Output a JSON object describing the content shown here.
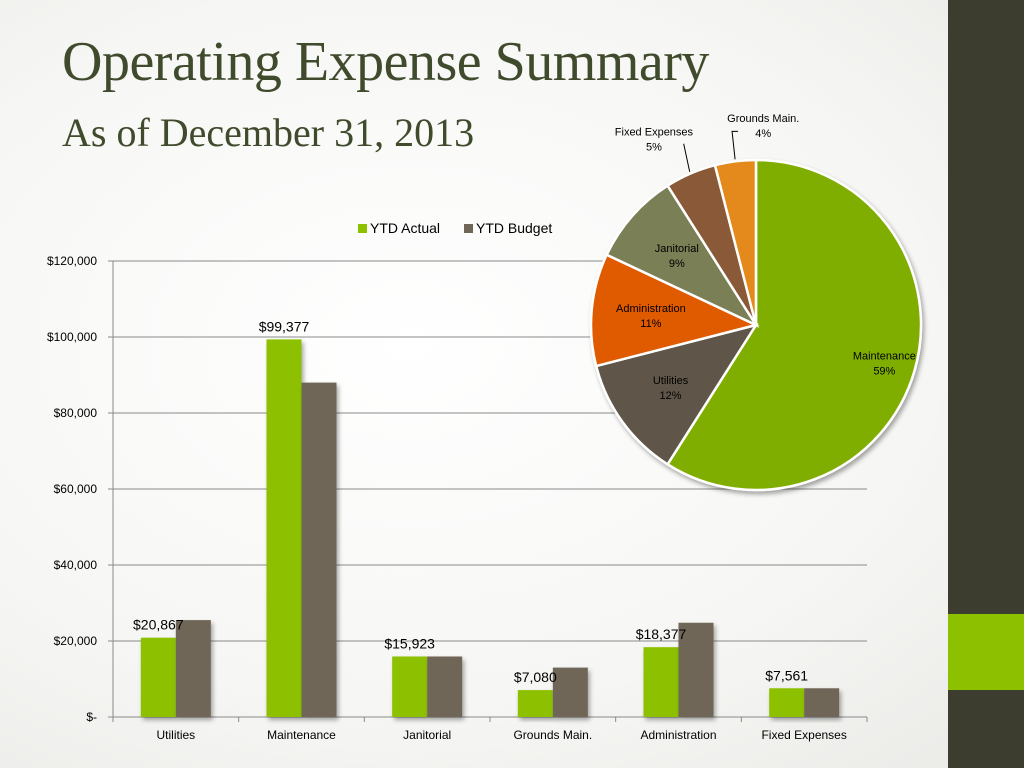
{
  "title": "Operating Expense Summary",
  "subtitle": "As of December 31, 2013",
  "colors": {
    "actual": "#8dc100",
    "budget": "#6f6658",
    "sidebar": "#3d3d2f",
    "accent": "#8dc100"
  },
  "chart_data": [
    {
      "type": "bar",
      "categories": [
        "Utilities",
        "Maintenance",
        "Janitorial",
        "Grounds Main.",
        "Administration",
        "Fixed Expenses"
      ],
      "series": [
        {
          "name": "YTD Actual",
          "values": [
            20867,
            99377,
            15923,
            7080,
            18377,
            7561
          ],
          "color": "#8dc100"
        },
        {
          "name": "YTD Budget",
          "values": [
            25500,
            88000,
            15923,
            13000,
            24800,
            7561
          ],
          "color": "#6f6658"
        }
      ],
      "data_labels": [
        "$20,867",
        "$99,377",
        "$15,923",
        "$7,080",
        "$18,377",
        "$7,561"
      ],
      "yticks": [
        0,
        20000,
        40000,
        60000,
        80000,
        100000,
        120000
      ],
      "ytick_labels": [
        "$-",
        "$20,000",
        "$40,000",
        "$60,000",
        "$80,000",
        "$100,000",
        "$120,000"
      ],
      "ylim": [
        0,
        120000
      ],
      "grid": true,
      "legend_position": "top"
    },
    {
      "type": "pie",
      "slices": [
        {
          "label": "Maintenance",
          "pct": "59%",
          "value": 59,
          "color": "#7fae00"
        },
        {
          "label": "Utilities",
          "pct": "12%",
          "value": 12,
          "color": "#5e5748"
        },
        {
          "label": "Administration",
          "pct": "11%",
          "value": 11,
          "color": "#e05a05"
        },
        {
          "label": "Janitorial",
          "pct": "9%",
          "value": 9,
          "color": "#7a7f55"
        },
        {
          "label": "Fixed Expenses",
          "pct": "5%",
          "value": 5,
          "color": "#8a5a37"
        },
        {
          "label": "Grounds Main.",
          "pct": "4%",
          "value": 4,
          "color": "#e48a1e"
        }
      ]
    }
  ]
}
